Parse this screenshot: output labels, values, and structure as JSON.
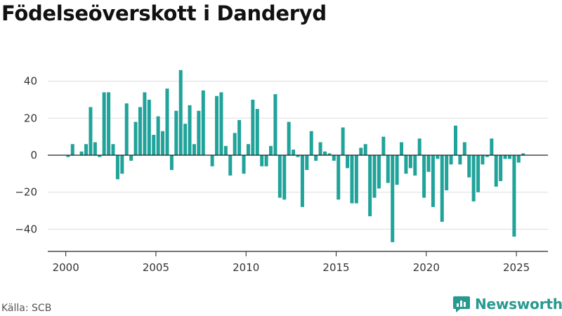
{
  "title": "Födelseöverskott i Danderyd",
  "source": "Källa: SCB",
  "brand": "Newsworthy",
  "icons": [
    "newsworthy-logo-icon"
  ],
  "colors": {
    "bar": "#20a39a",
    "brand": "#28998f",
    "text": "#111111",
    "grid": "#dddddd"
  },
  "chart_data": {
    "type": "bar",
    "title": "Födelseöverskott i Danderyd",
    "xlabel": "",
    "ylabel": "",
    "x_ticks": [
      2000,
      2005,
      2010,
      2015,
      2020,
      2025
    ],
    "y_ticks": [
      -40,
      -20,
      0,
      20,
      40
    ],
    "ylim": [
      -52,
      52
    ],
    "xlim": [
      1999.0,
      2026.75
    ],
    "grid": true,
    "frequency": "quarterly",
    "start": 2000.0,
    "categories": [
      "2000 Q1",
      "2000 Q2",
      "2000 Q3",
      "2000 Q4",
      "2001 Q1",
      "2001 Q2",
      "2001 Q3",
      "2001 Q4",
      "2002 Q1",
      "2002 Q2",
      "2002 Q3",
      "2002 Q4",
      "2003 Q1",
      "2003 Q2",
      "2003 Q3",
      "2003 Q4",
      "2004 Q1",
      "2004 Q2",
      "2004 Q3",
      "2004 Q4",
      "2005 Q1",
      "2005 Q2",
      "2005 Q3",
      "2005 Q4",
      "2006 Q1",
      "2006 Q2",
      "2006 Q3",
      "2006 Q4",
      "2007 Q1",
      "2007 Q2",
      "2007 Q3",
      "2007 Q4",
      "2008 Q1",
      "2008 Q2",
      "2008 Q3",
      "2008 Q4",
      "2009 Q1",
      "2009 Q2",
      "2009 Q3",
      "2009 Q4",
      "2010 Q1",
      "2010 Q2",
      "2010 Q3",
      "2010 Q4",
      "2011 Q1",
      "2011 Q2",
      "2011 Q3",
      "2011 Q4",
      "2012 Q1",
      "2012 Q2",
      "2012 Q3",
      "2012 Q4",
      "2013 Q1",
      "2013 Q2",
      "2013 Q3",
      "2013 Q4",
      "2014 Q1",
      "2014 Q2",
      "2014 Q3",
      "2014 Q4",
      "2015 Q1",
      "2015 Q2",
      "2015 Q3",
      "2015 Q4",
      "2016 Q1",
      "2016 Q2",
      "2016 Q3",
      "2016 Q4",
      "2017 Q1",
      "2017 Q2",
      "2017 Q3",
      "2017 Q4",
      "2018 Q1",
      "2018 Q2",
      "2018 Q3",
      "2018 Q4",
      "2019 Q1",
      "2019 Q2",
      "2019 Q3",
      "2019 Q4",
      "2020 Q1",
      "2020 Q2",
      "2020 Q3",
      "2020 Q4",
      "2021 Q1",
      "2021 Q2",
      "2021 Q3",
      "2021 Q4",
      "2022 Q1",
      "2022 Q2",
      "2022 Q3",
      "2022 Q4",
      "2023 Q1",
      "2023 Q2",
      "2023 Q3",
      "2023 Q4",
      "2024 Q1",
      "2024 Q2",
      "2024 Q3",
      "2024 Q4",
      "2025 Q1",
      "2025 Q2"
    ],
    "values": [
      -1,
      6,
      0,
      2,
      6,
      26,
      7,
      -1,
      34,
      34,
      6,
      -13,
      -10,
      28,
      -3,
      18,
      26,
      34,
      30,
      11,
      21,
      13,
      36,
      -8,
      24,
      46,
      17,
      27,
      6,
      24,
      35,
      0,
      -6,
      32,
      34,
      5,
      -11,
      12,
      19,
      -10,
      6,
      30,
      25,
      -6,
      -6,
      5,
      33,
      -23,
      -24,
      18,
      3,
      -1,
      -28,
      -8,
      13,
      -3,
      7,
      2,
      1,
      -3,
      -24,
      15,
      -7,
      -26,
      -26,
      4,
      6,
      -33,
      -23,
      -18,
      10,
      -15,
      -47,
      -16,
      7,
      -10,
      -7,
      -11,
      9,
      -23,
      -9,
      -28,
      -2,
      -36,
      -19,
      -5,
      16,
      -5,
      7,
      -12,
      -25,
      -20,
      -5,
      -1,
      9,
      -17,
      -14,
      -2,
      -2,
      -44,
      -4,
      1
    ]
  }
}
